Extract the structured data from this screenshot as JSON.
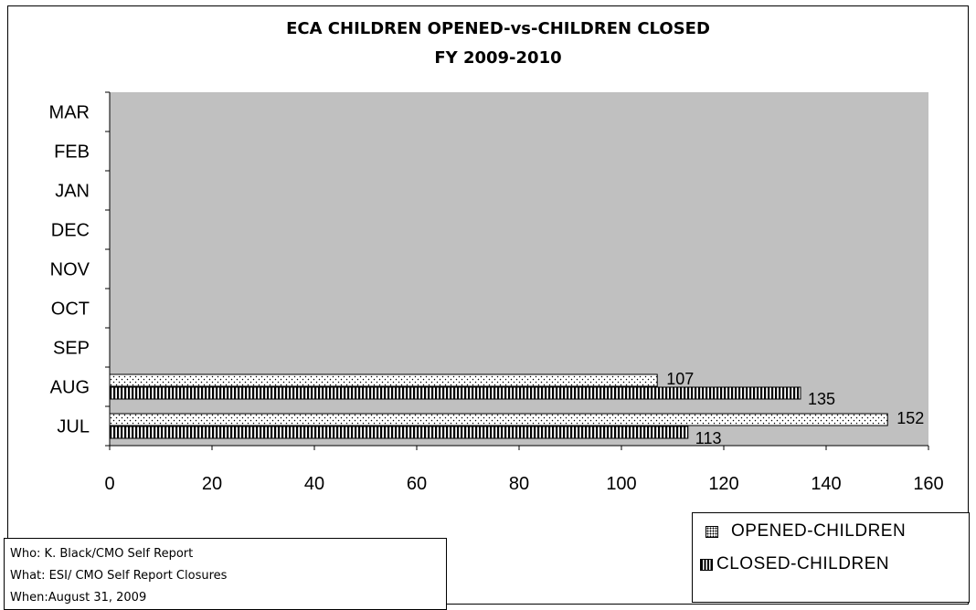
{
  "info": {
    "who": "Who: K. Black/CMO Self Report",
    "what": "What: ESI/ CMO Self Report Closures",
    "when": "When:August 31, 2009"
  },
  "chart_data": {
    "type": "bar",
    "orientation": "horizontal",
    "title": "ECA CHILDREN OPENED-vs-CHILDREN CLOSED",
    "subtitle": "FY 2009-2010",
    "xlabel": "",
    "ylabel": "",
    "categories": [
      "JUL",
      "AUG",
      "SEP",
      "OCT",
      "NOV",
      "DEC",
      "JAN",
      "FEB",
      "MAR"
    ],
    "series": [
      {
        "name": "OPENED-CHILDREN",
        "values": [
          152,
          107,
          null,
          null,
          null,
          null,
          null,
          null,
          null
        ],
        "labels": [
          "152",
          "107"
        ],
        "pattern": "dots"
      },
      {
        "name": "CLOSED-CHILDREN",
        "values": [
          113,
          135,
          null,
          null,
          null,
          null,
          null,
          null,
          null
        ],
        "labels": [
          "113",
          "135"
        ],
        "pattern": "vertical-stripes"
      }
    ],
    "xlim": [
      0,
      160
    ],
    "x_ticks": [
      "0",
      "20",
      "40",
      "60",
      "80",
      "100",
      "120",
      "140",
      "160"
    ],
    "plot_background": "#c0c0c0",
    "grid": false,
    "legend_position": "bottom-right"
  }
}
